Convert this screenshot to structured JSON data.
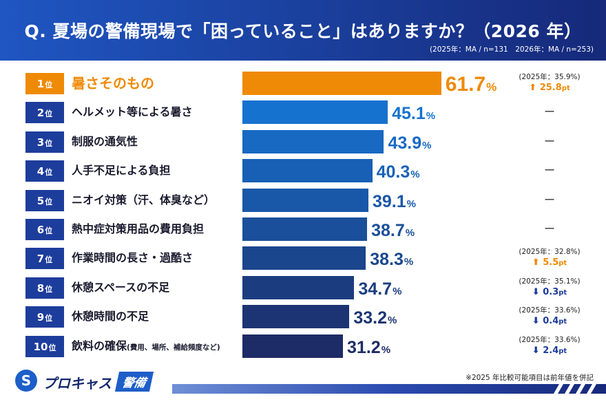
{
  "header": {
    "title": "Q. 夏場の警備現場で「困っていること」はありますか？（2026 年）",
    "subtitle": "(2025年：MA / n=131　2026年：MA / n=253)"
  },
  "rank_suffix": "位",
  "pct_unit": "%",
  "dash": "ー",
  "colors": {
    "top": "#ef8a06",
    "gradient": [
      "#1672cf",
      "#1d2b66"
    ],
    "up": "#ef8a06",
    "down": "#1d3d9c"
  },
  "chart_data": {
    "type": "bar",
    "orientation": "horizontal",
    "title": "Q. 夏場の警備現場で「困っていること」はありますか？（2026 年）",
    "categories": [
      "暑さそのもの",
      "ヘルメット等による暑さ",
      "制服の通気性",
      "人手不足による負担",
      "ニオイ対策（汗、体臭など）",
      "熱中症対策用品の費用負担",
      "作業時間の長さ・過酷さ",
      "休憩スペースの不足",
      "休憩時間の不足",
      "飲料の確保"
    ],
    "values": [
      61.7,
      45.1,
      43.9,
      40.3,
      39.1,
      38.7,
      38.3,
      34.7,
      33.2,
      31.2
    ],
    "xlim": [
      0,
      100
    ],
    "grid": false,
    "legend": "none"
  },
  "rows": [
    {
      "rank": "1",
      "label": "暑さそのもの",
      "label_small": "",
      "value": "61.7",
      "prev": "(2025年：35.9%)",
      "change": "25.8",
      "dir": "up"
    },
    {
      "rank": "2",
      "label": "ヘルメット等による暑さ",
      "label_small": "",
      "value": "45.1",
      "prev": "",
      "change": "",
      "dir": "none"
    },
    {
      "rank": "3",
      "label": "制服の通気性",
      "label_small": "",
      "value": "43.9",
      "prev": "",
      "change": "",
      "dir": "none"
    },
    {
      "rank": "4",
      "label": "人手不足による負担",
      "label_small": "",
      "value": "40.3",
      "prev": "",
      "change": "",
      "dir": "none"
    },
    {
      "rank": "5",
      "label": "ニオイ対策（汗、体臭など）",
      "label_small": "",
      "value": "39.1",
      "prev": "",
      "change": "",
      "dir": "none"
    },
    {
      "rank": "6",
      "label": "熱中症対策用品の費用負担",
      "label_small": "",
      "value": "38.7",
      "prev": "",
      "change": "",
      "dir": "none"
    },
    {
      "rank": "7",
      "label": "作業時間の長さ・過酷さ",
      "label_small": "",
      "value": "38.3",
      "prev": "(2025年：32.8%)",
      "change": "5.5",
      "dir": "up"
    },
    {
      "rank": "8",
      "label": "休憩スペースの不足",
      "label_small": "",
      "value": "34.7",
      "prev": "(2025年：35.1%)",
      "change": "0.3",
      "dir": "down"
    },
    {
      "rank": "9",
      "label": "休憩時間の不足",
      "label_small": "",
      "value": "33.2",
      "prev": "(2025年：33.6%)",
      "change": "0.4",
      "dir": "down"
    },
    {
      "rank": "10",
      "label": "飲料の確保",
      "label_small": "(費用、場所、補給頻度など)",
      "value": "31.2",
      "prev": "(2025年：33.6%)",
      "change": "2.4",
      "dir": "down"
    }
  ],
  "change_unit": "pt",
  "footer": {
    "note": "※2025 年比較可能項目は前年値を併記",
    "logo_mark": "S",
    "logo_text": "プロキャス",
    "logo_tag": "警備"
  }
}
